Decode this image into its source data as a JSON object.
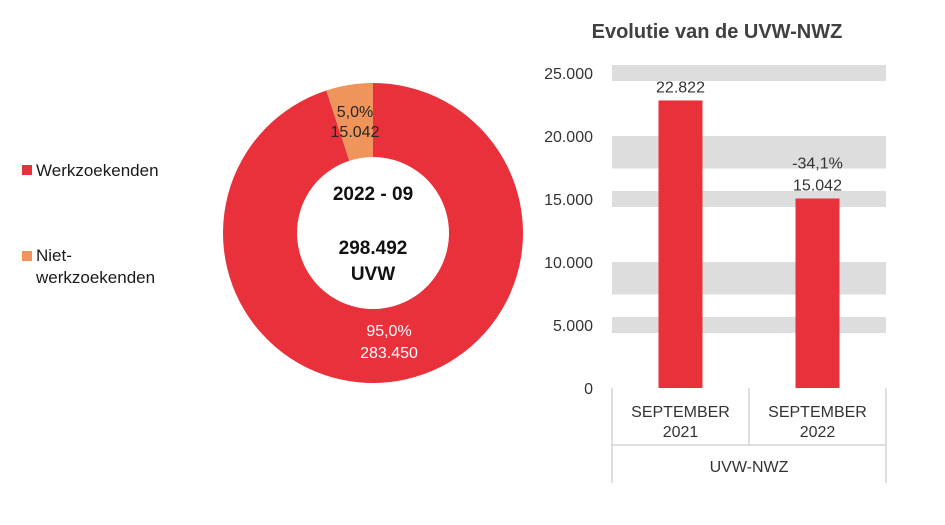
{
  "colors": {
    "werkzoekenden": "#E8313B",
    "niet_werkzoekenden": "#EF955C",
    "grid_band": "#DDDDDD",
    "text": "#262626"
  },
  "legend": [
    {
      "label": "Werkzoekenden",
      "color": "#E8313B"
    },
    {
      "label": "Niet-werkzoekenden",
      "line1": "Niet-",
      "line2": "werkzoekenden",
      "color": "#EF955C"
    }
  ],
  "chart_data": [
    {
      "type": "pie",
      "variant": "donut",
      "center": {
        "line1": "2022 - 09",
        "line2": "298.492",
        "line3": "UVW"
      },
      "slices": [
        {
          "label": "Werkzoekenden",
          "pct_label": "95,0%",
          "value_label": "283.450",
          "value": 283450,
          "pct": 95.0,
          "color": "#E8313B"
        },
        {
          "label": "Niet-werkzoekenden",
          "pct_label": "5,0%",
          "value_label": "15.042",
          "value": 15042,
          "pct": 5.0,
          "color": "#EF955C"
        }
      ]
    },
    {
      "type": "bar",
      "title": "Evolutie van de UVW-NWZ",
      "categories": [
        [
          "SEPTEMBER",
          "2021"
        ],
        [
          "SEPTEMBER",
          "2022"
        ]
      ],
      "group_label": "UVW-NWZ",
      "values": [
        22822,
        15042
      ],
      "value_labels": [
        "22.822",
        "15.042"
      ],
      "change_labels": [
        "",
        "-34,1%"
      ],
      "ylim": [
        0,
        25000
      ],
      "yticks": [
        0,
        5000,
        10000,
        15000,
        20000,
        25000
      ],
      "ytick_labels": [
        "0",
        "5.000",
        "10.000",
        "15.000",
        "20.000",
        "25.000"
      ],
      "grid": "banded",
      "color": "#E8313B"
    }
  ]
}
